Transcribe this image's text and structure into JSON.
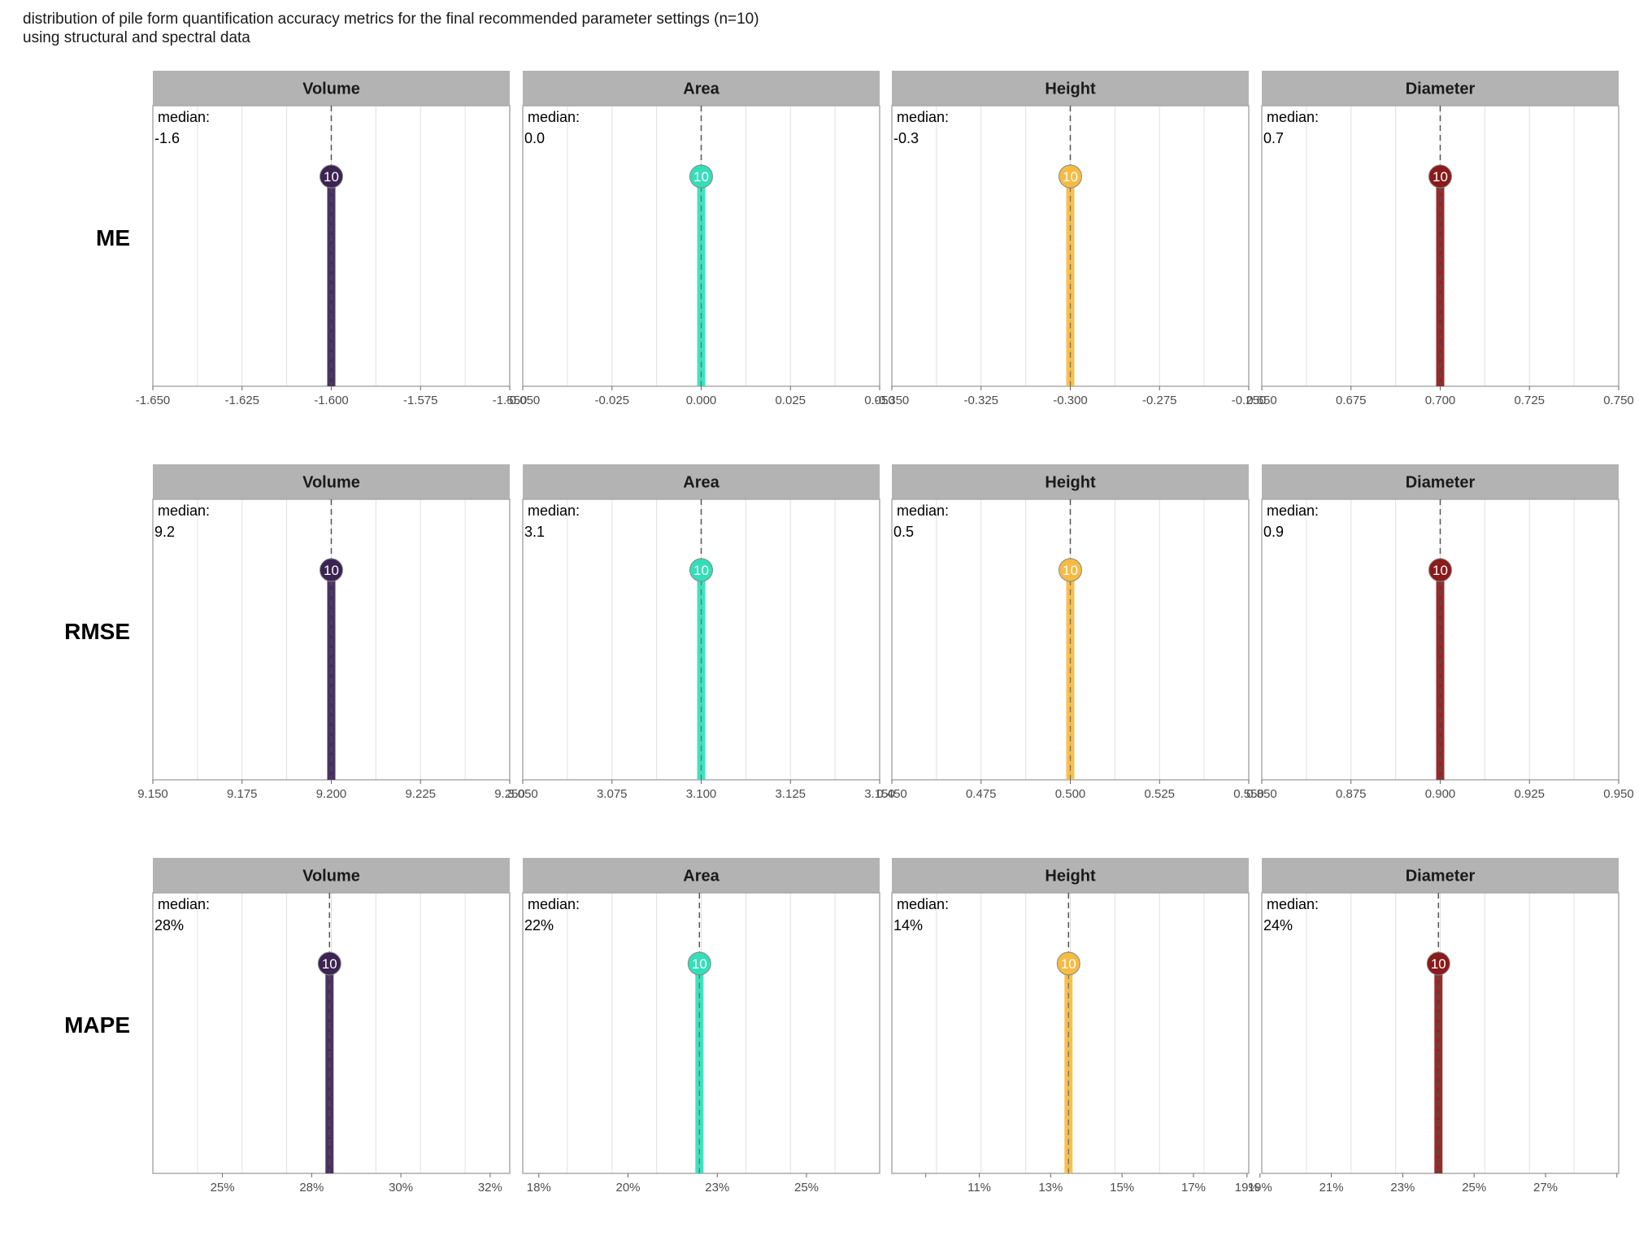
{
  "title": {
    "line1": "distribution of pile form quantification accuracy metrics for the final recommended parameter settings (n=10)",
    "line2": "using structural and spectral data"
  },
  "colors": {
    "Volume": "#3b2352",
    "Area": "#33dfb8",
    "Height": "#f6bb42",
    "Diameter": "#8b1a1a",
    "strip": "#b3b3b3",
    "grid": "#e0e0e0",
    "panel_border": "#a6a6a6"
  },
  "chart_data": {
    "type": "lollipop",
    "rows": [
      "ME",
      "RMSE",
      "MAPE"
    ],
    "columns": [
      "Volume",
      "Area",
      "Height",
      "Diameter"
    ],
    "median_label": "median:",
    "panels": [
      {
        "row": "ME",
        "col": "Volume",
        "value": -1.6,
        "median_text": "-1.6",
        "count": "10",
        "xlim": [
          -1.65,
          -1.55
        ],
        "ticks": [
          -1.65,
          -1.625,
          -1.6,
          -1.575,
          -1.55
        ],
        "tick_labels": [
          "-1.650",
          "-1.625",
          "-1.600",
          "-1.575",
          "-1.550"
        ]
      },
      {
        "row": "ME",
        "col": "Area",
        "value": 0.0,
        "median_text": "0.0",
        "count": "10",
        "xlim": [
          -0.05,
          0.05
        ],
        "ticks": [
          -0.05,
          -0.025,
          0.0,
          0.025,
          0.05
        ],
        "tick_labels": [
          "-0.050",
          "-0.025",
          "0.000",
          "0.025",
          "0.050"
        ]
      },
      {
        "row": "ME",
        "col": "Height",
        "value": -0.3,
        "median_text": "-0.3",
        "count": "10",
        "xlim": [
          -0.35,
          -0.25
        ],
        "ticks": [
          -0.35,
          -0.325,
          -0.3,
          -0.275,
          -0.25
        ],
        "tick_labels": [
          "-0.350",
          "-0.325",
          "-0.300",
          "-0.275",
          "-0.250"
        ]
      },
      {
        "row": "ME",
        "col": "Diameter",
        "value": 0.7,
        "median_text": "0.7",
        "count": "10",
        "xlim": [
          0.65,
          0.75
        ],
        "ticks": [
          0.65,
          0.675,
          0.7,
          0.725,
          0.75
        ],
        "tick_labels": [
          "0.650",
          "0.675",
          "0.700",
          "0.725",
          "0.750"
        ]
      },
      {
        "row": "RMSE",
        "col": "Volume",
        "value": 9.2,
        "median_text": "9.2",
        "count": "10",
        "xlim": [
          9.15,
          9.25
        ],
        "ticks": [
          9.15,
          9.175,
          9.2,
          9.225,
          9.25
        ],
        "tick_labels": [
          "9.150",
          "9.175",
          "9.200",
          "9.225",
          "9.250"
        ]
      },
      {
        "row": "RMSE",
        "col": "Area",
        "value": 3.1,
        "median_text": "3.1",
        "count": "10",
        "xlim": [
          3.05,
          3.15
        ],
        "ticks": [
          3.05,
          3.075,
          3.1,
          3.125,
          3.15
        ],
        "tick_labels": [
          "3.050",
          "3.075",
          "3.100",
          "3.125",
          "3.150"
        ]
      },
      {
        "row": "RMSE",
        "col": "Height",
        "value": 0.5,
        "median_text": "0.5",
        "count": "10",
        "xlim": [
          0.45,
          0.55
        ],
        "ticks": [
          0.45,
          0.475,
          0.5,
          0.525,
          0.55
        ],
        "tick_labels": [
          "0.450",
          "0.475",
          "0.500",
          "0.525",
          "0.550"
        ]
      },
      {
        "row": "RMSE",
        "col": "Diameter",
        "value": 0.9,
        "median_text": "0.9",
        "count": "10",
        "xlim": [
          0.85,
          0.95
        ],
        "ticks": [
          0.85,
          0.875,
          0.9,
          0.925,
          0.95
        ],
        "tick_labels": [
          "0.850",
          "0.875",
          "0.900",
          "0.925",
          "0.950"
        ]
      },
      {
        "row": "MAPE",
        "col": "Volume",
        "value": 0.28,
        "median_text": "28%",
        "count": "10",
        "xlim": [
          0.2305,
          0.3305
        ],
        "ticks": [
          0.25,
          0.275,
          0.3,
          0.325
        ],
        "tick_labels": [
          "25%",
          "28%",
          "30%",
          "32%"
        ]
      },
      {
        "row": "MAPE",
        "col": "Area",
        "value": 0.22,
        "median_text": "22%",
        "count": "10",
        "xlim": [
          0.1705,
          0.2705
        ],
        "ticks": [
          0.175,
          0.2,
          0.225,
          0.25
        ],
        "tick_labels": [
          "18%",
          "20%",
          "23%",
          "25%"
        ]
      },
      {
        "row": "MAPE",
        "col": "Height",
        "value": 0.14,
        "median_text": "14%",
        "count": "10",
        "xlim": [
          0.0905,
          0.1905
        ],
        "ticks": [
          0.1,
          0.115,
          0.135,
          0.155,
          0.175,
          0.19
        ],
        "tick_labels": [
          "",
          "11%",
          "13%",
          "15%",
          "17%",
          "19%"
        ]
      },
      {
        "row": "MAPE",
        "col": "Diameter",
        "value": 0.24,
        "median_text": "24%",
        "count": "10",
        "xlim": [
          0.1905,
          0.2905
        ],
        "ticks": [
          0.19,
          0.21,
          0.23,
          0.25,
          0.27,
          0.29
        ],
        "tick_labels": [
          "19%",
          "21%",
          "23%",
          "25%",
          "27%",
          ""
        ]
      }
    ]
  }
}
